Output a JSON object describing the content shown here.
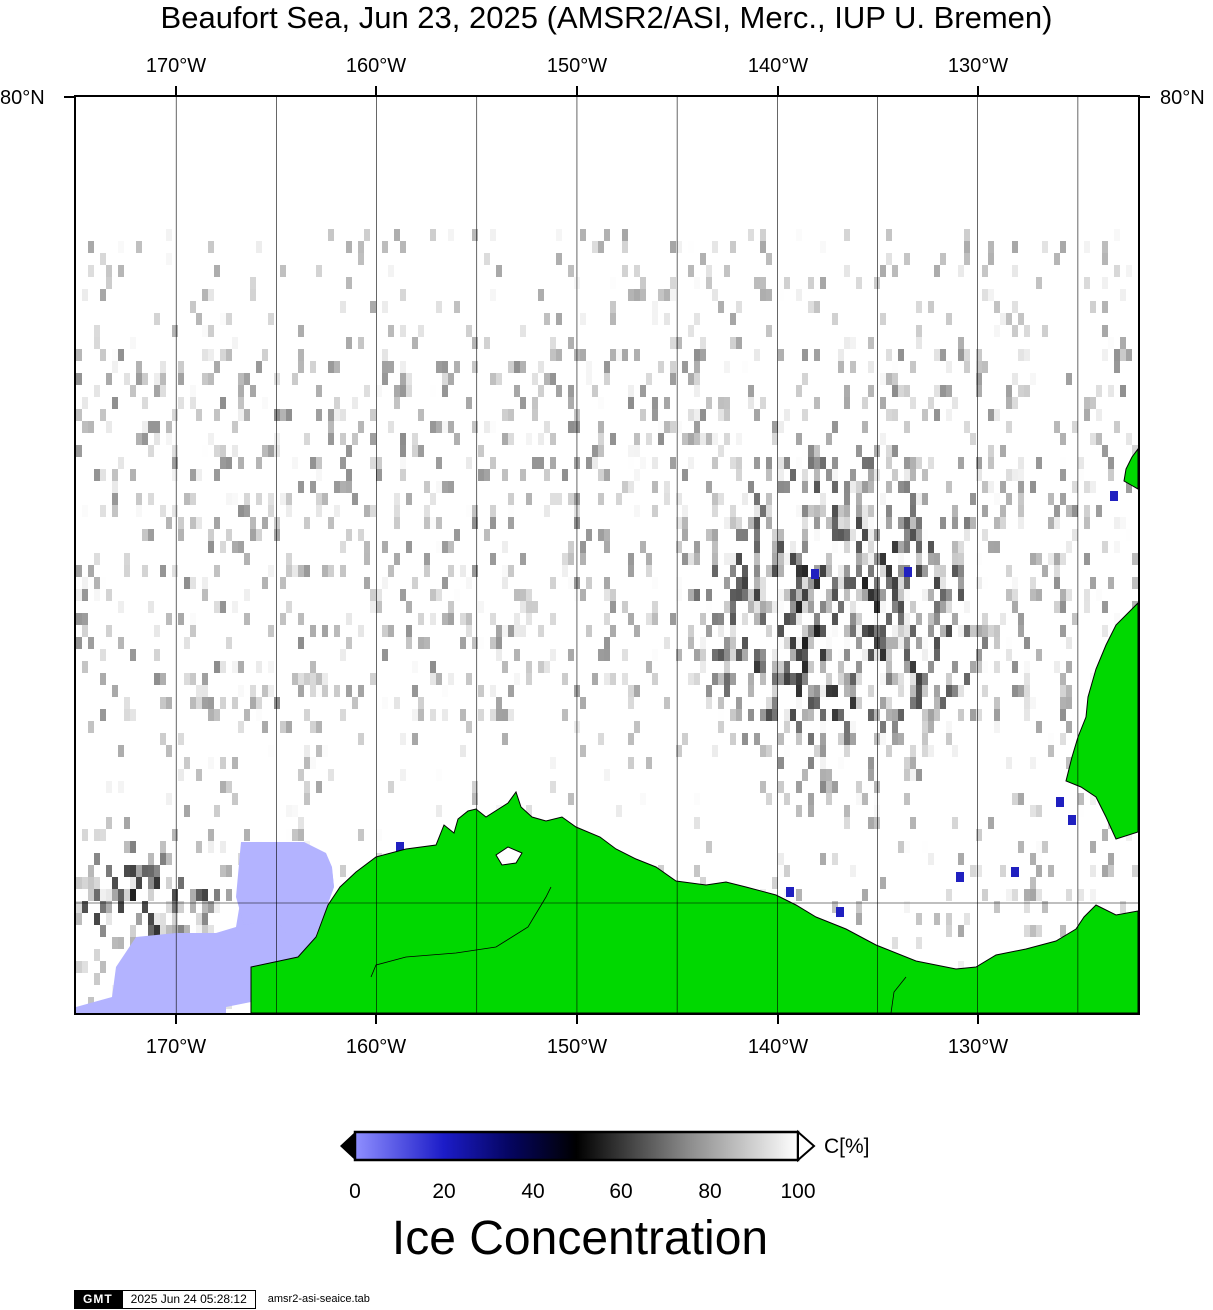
{
  "title": "Beaufort Sea, Jun 23, 2025 (AMSR2/ASI, Merc., IUP U. Bremen)",
  "map": {
    "longitude_labels": [
      "170°W",
      "160°W",
      "150°W",
      "140°W",
      "130°W"
    ],
    "longitude_values": [
      -170,
      -160,
      -150,
      -140,
      -130
    ],
    "latitude_label": "80°N",
    "latitude_value": 80,
    "lon_range": [
      -175,
      -122
    ],
    "colors": {
      "land": "#00d800",
      "ocean_open": "#b3b3ff",
      "ice_full": "#ffffff",
      "frame": "#000000"
    }
  },
  "colorbar": {
    "ticks": [
      "0",
      "20",
      "40",
      "60",
      "80",
      "100"
    ],
    "unit": "C[%]",
    "title": "Ice Concentration",
    "gradient_stops": [
      {
        "value": 0,
        "color": "#8f8fff"
      },
      {
        "value": 20,
        "color": "#1c1cc8"
      },
      {
        "value": 35,
        "color": "#050560"
      },
      {
        "value": 50,
        "color": "#000000"
      },
      {
        "value": 75,
        "color": "#8a8a8a"
      },
      {
        "value": 100,
        "color": "#ffffff"
      }
    ]
  },
  "footer": {
    "logo": "GMT",
    "timestamp": "2025 Jun 24 05:28:12",
    "filename": "amsr2-asi-seaice.tab"
  }
}
